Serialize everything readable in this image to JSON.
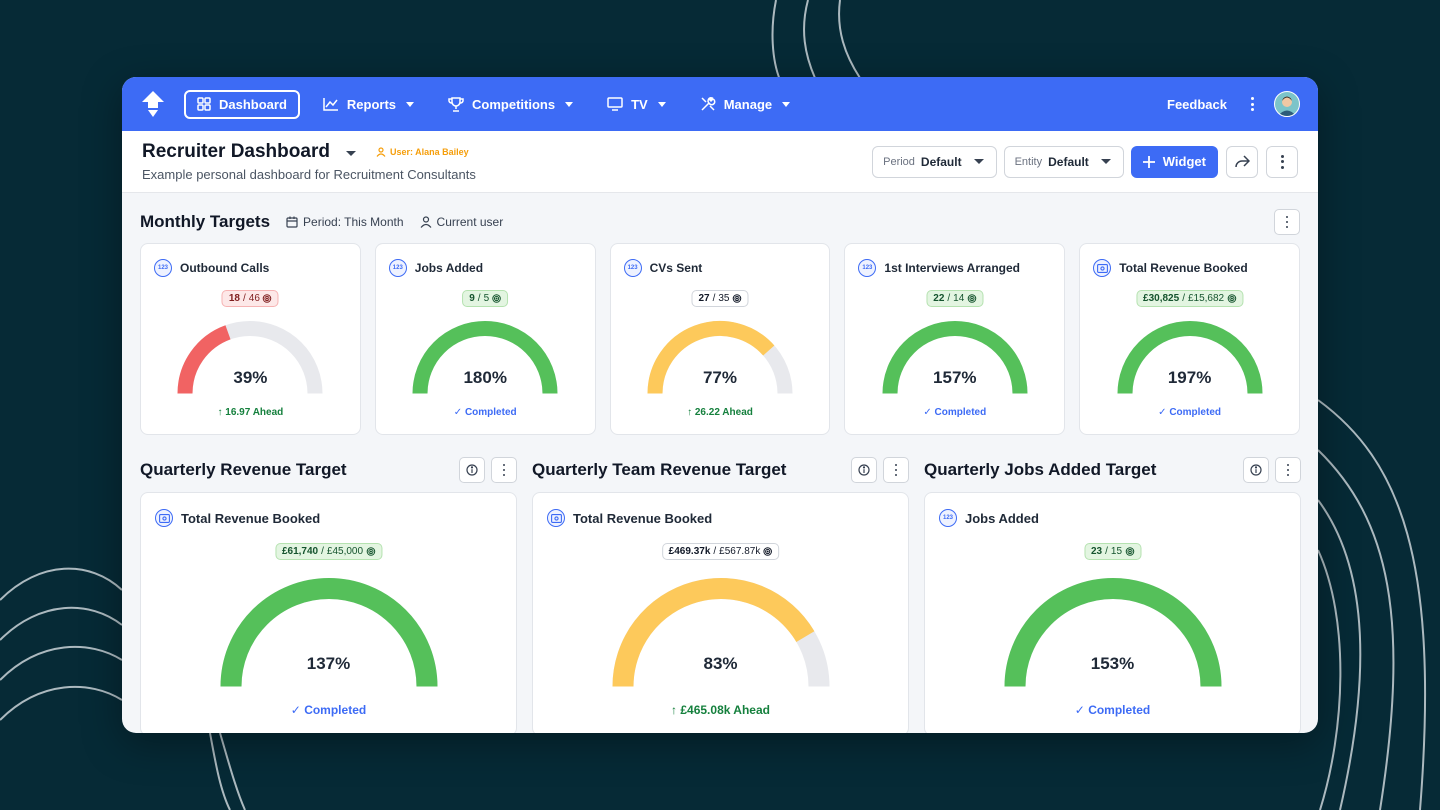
{
  "nav": {
    "items": [
      {
        "label": "Dashboard",
        "icon": "grid-icon"
      },
      {
        "label": "Reports",
        "icon": "chart-line-icon"
      },
      {
        "label": "Competitions",
        "icon": "trophy-icon"
      },
      {
        "label": "TV",
        "icon": "tv-icon"
      },
      {
        "label": "Manage",
        "icon": "tools-icon"
      }
    ],
    "feedback": "Feedback"
  },
  "header": {
    "title": "Recruiter Dashboard",
    "user_tag": "User: Alana Bailey",
    "subtitle": "Example personal dashboard for Recruitment Consultants",
    "period_label": "Period",
    "period_value": "Default",
    "entity_label": "Entity",
    "entity_value": "Default",
    "widget_label": "Widget"
  },
  "monthly": {
    "title": "Monthly Targets",
    "period": "Period: This Month",
    "user": "Current user",
    "cards": [
      {
        "title": "Outbound Calls",
        "icon": "number-icon",
        "actual": "18",
        "target": "46",
        "pct_label": "39%",
        "pct": 39,
        "status": "16.97 Ahead",
        "status_type": "ahead",
        "pill": "red",
        "color": "#f16363"
      },
      {
        "title": "Jobs Added",
        "icon": "number-icon",
        "actual": "9",
        "target": "5",
        "pct_label": "180%",
        "pct": 180,
        "status": "Completed",
        "status_type": "done",
        "pill": "green",
        "color": "#55c05a"
      },
      {
        "title": "CVs Sent",
        "icon": "number-icon",
        "actual": "27",
        "target": "35",
        "pct_label": "77%",
        "pct": 77,
        "status": "26.22 Ahead",
        "status_type": "ahead",
        "pill": "neutral",
        "color": "#fdc95b"
      },
      {
        "title": "1st Interviews Arranged",
        "icon": "number-icon",
        "actual": "22",
        "target": "14",
        "pct_label": "157%",
        "pct": 157,
        "status": "Completed",
        "status_type": "done",
        "pill": "green",
        "color": "#55c05a"
      },
      {
        "title": "Total Revenue Booked",
        "icon": "money-icon",
        "actual": "£30,825",
        "target": "£15,682",
        "pct_label": "197%",
        "pct": 197,
        "status": "Completed",
        "status_type": "done",
        "pill": "green",
        "color": "#55c05a"
      }
    ]
  },
  "quarterly": [
    {
      "section": "Quarterly Revenue Target",
      "title": "Total Revenue Booked",
      "icon": "money-icon",
      "actual": "£61,740",
      "target": "£45,000",
      "pct_label": "137%",
      "pct": 137,
      "status": "Completed",
      "status_type": "done",
      "pill": "green",
      "color": "#55c05a"
    },
    {
      "section": "Quarterly Team Revenue Target",
      "title": "Total Revenue Booked",
      "icon": "money-icon",
      "actual": "£469.37k",
      "target": "£567.87k",
      "pct_label": "83%",
      "pct": 83,
      "status": "£465.08k Ahead",
      "status_type": "ahead",
      "pill": "neutral",
      "color": "#fdc95b"
    },
    {
      "section": "Quarterly Jobs Added Target",
      "title": "Jobs Added",
      "icon": "number-icon",
      "actual": "23",
      "target": "15",
      "pct_label": "153%",
      "pct": 153,
      "status": "Completed",
      "status_type": "done",
      "pill": "green",
      "color": "#55c05a"
    }
  ],
  "colors": {
    "accent": "#3d6bf5",
    "track": "#e8e9ed",
    "background": "#062a36"
  }
}
